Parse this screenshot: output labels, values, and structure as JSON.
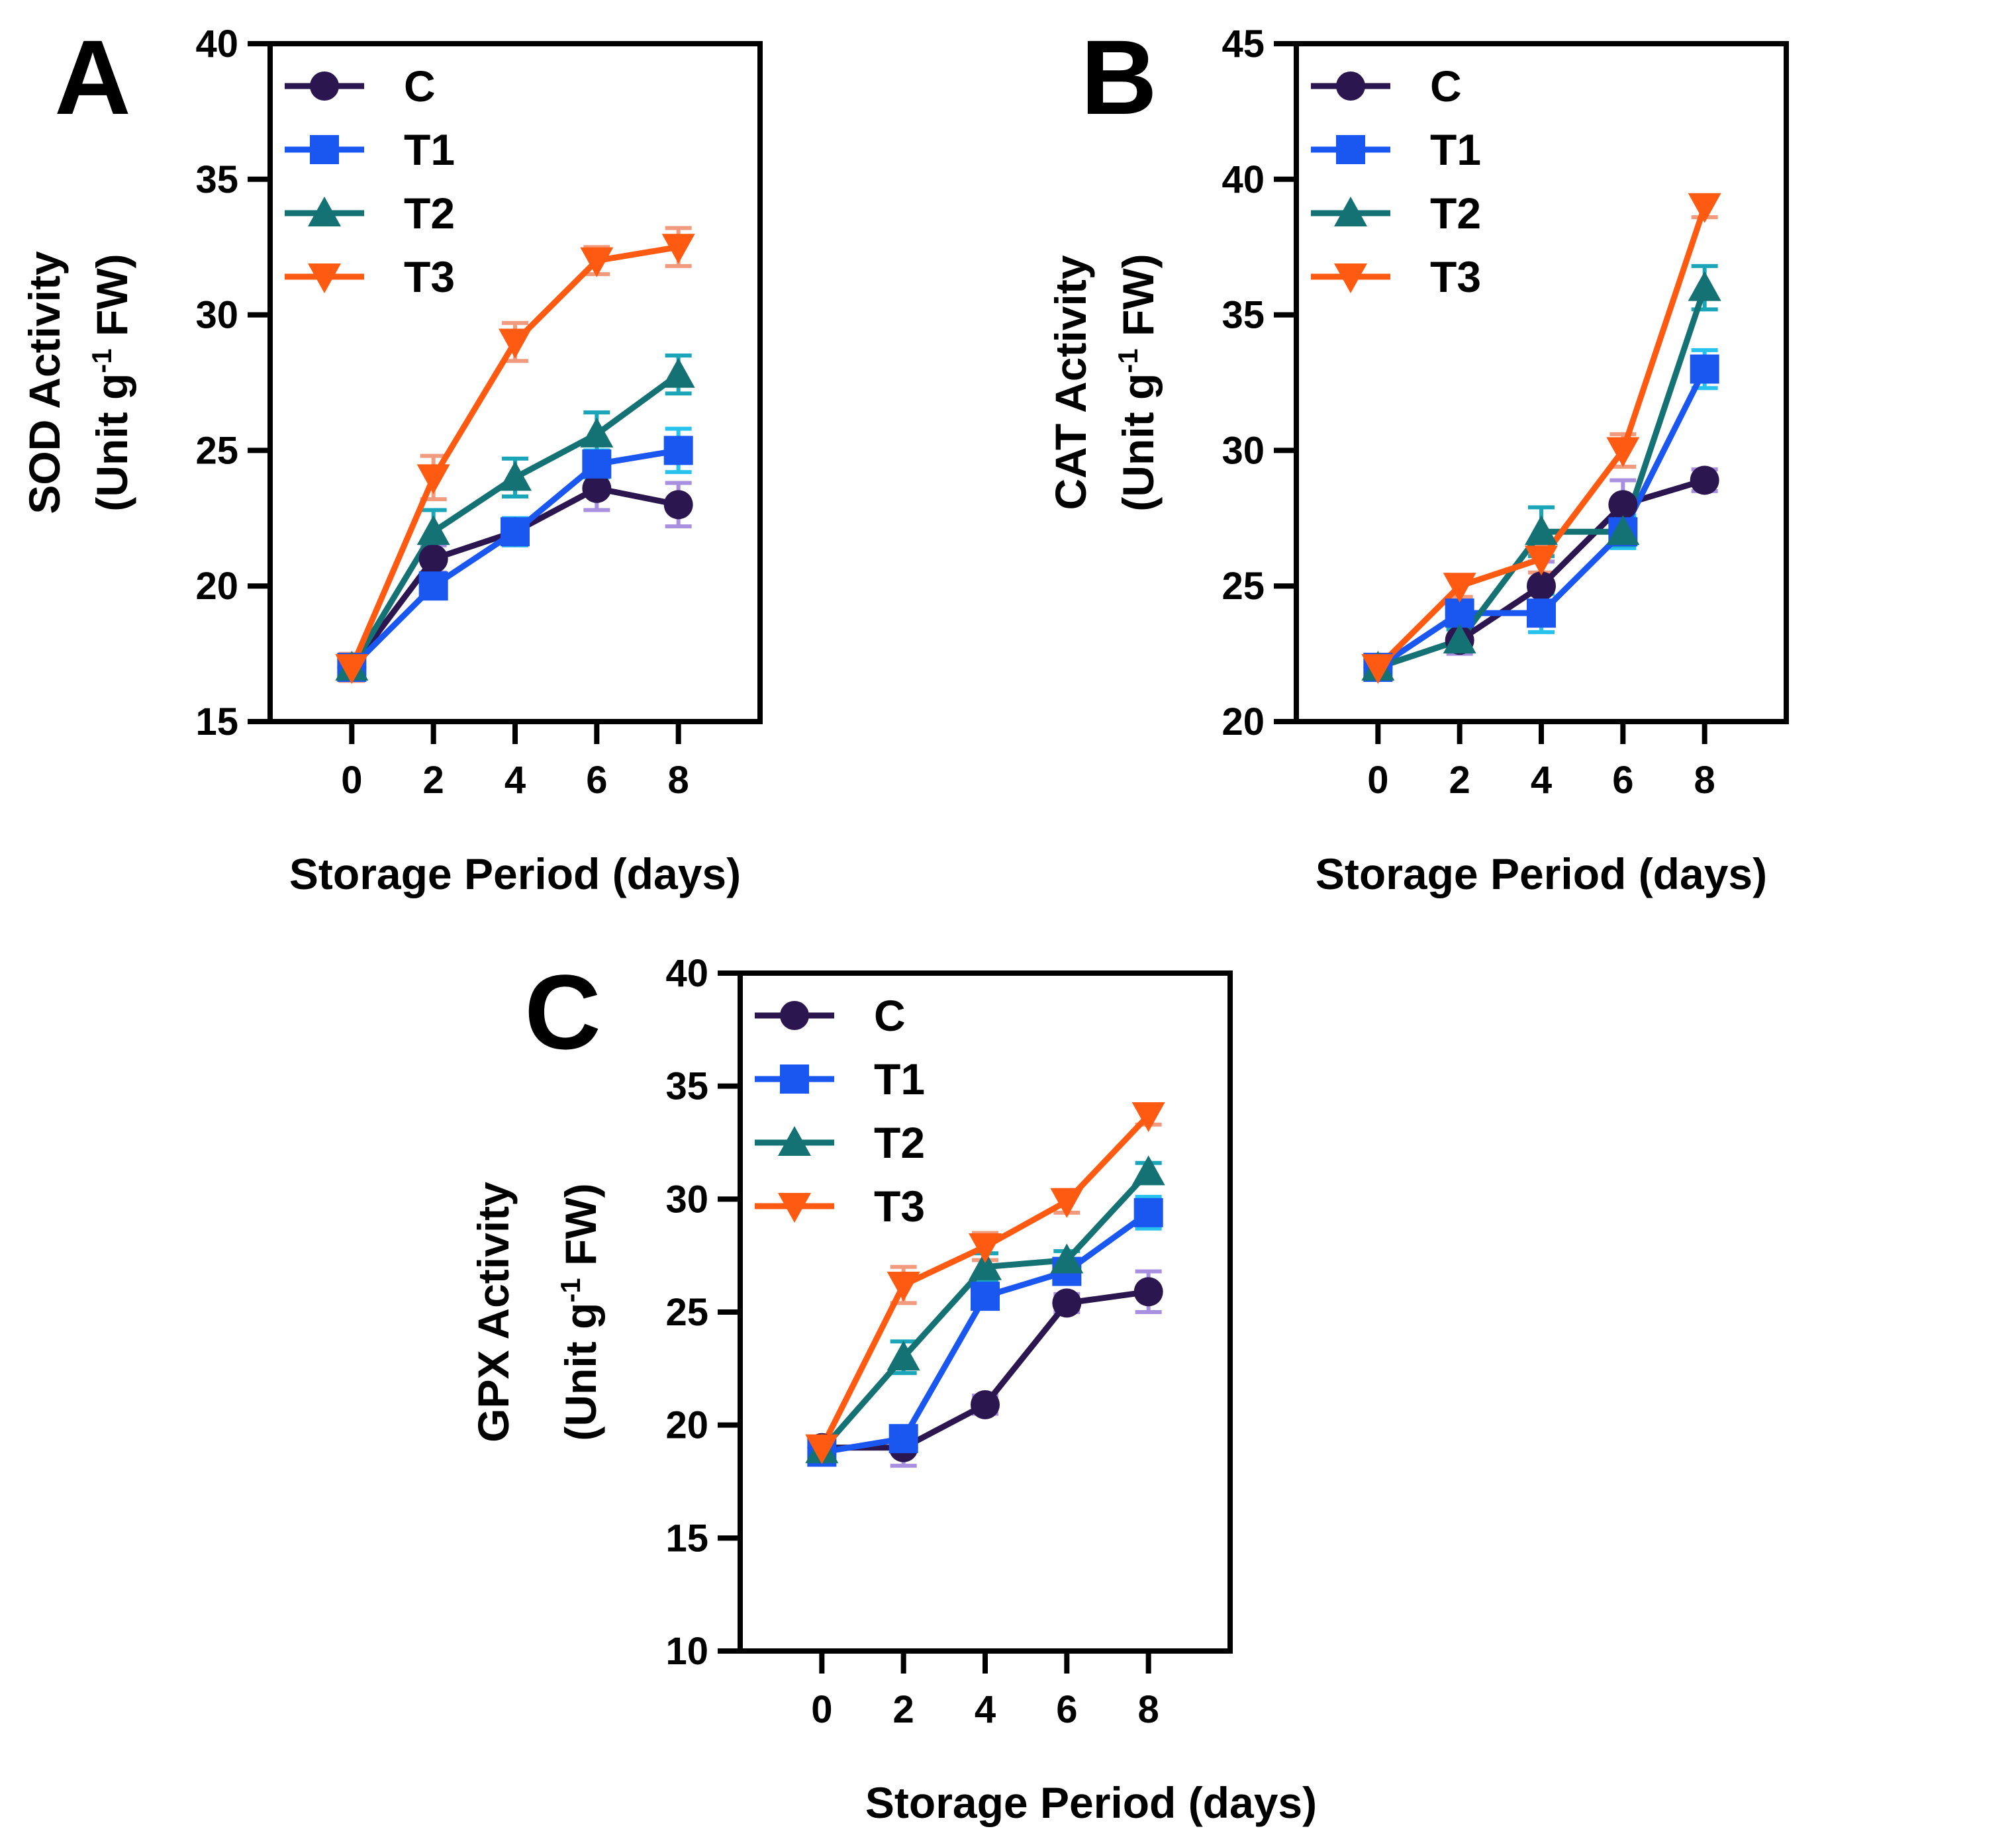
{
  "colors": {
    "C": "#2b1650",
    "T1": "#1a56f0",
    "T2": "#157274",
    "T3": "#ff5a12",
    "err_C": "#a98fe0",
    "err_T1": "#28c2ee",
    "err_T2": "#1aa6b8",
    "err_T3": "#f29a7e"
  },
  "chart_data": [
    {
      "panel": "A",
      "type": "line",
      "title": "",
      "xlabel": "Storage Period (days)",
      "ylabel_main": "SOD Activity",
      "ylabel_unit_pre": "(Unit g",
      "ylabel_unit_sup": "-1",
      "ylabel_unit_post": " FW)",
      "x": [
        0,
        2,
        4,
        6,
        8
      ],
      "x_tick_labels": [
        "0",
        "2",
        "4",
        "6",
        "8"
      ],
      "xlim": [
        -2,
        10
      ],
      "ylim": [
        15,
        40
      ],
      "y_ticks": [
        15,
        20,
        25,
        30,
        35,
        40
      ],
      "legend": "top-left",
      "series": [
        {
          "name": "C",
          "marker": "circle",
          "values": [
            17.0,
            21.0,
            22.0,
            23.6,
            23.0
          ],
          "errors": [
            0.4,
            0.5,
            0.5,
            0.8,
            0.8
          ]
        },
        {
          "name": "T1",
          "marker": "square",
          "values": [
            17.0,
            20.0,
            22.0,
            24.5,
            25.0
          ],
          "errors": [
            0.4,
            0.4,
            0.5,
            0.5,
            0.8
          ]
        },
        {
          "name": "T2",
          "marker": "triangle-up",
          "values": [
            17.0,
            22.0,
            24.0,
            25.6,
            27.8
          ],
          "errors": [
            0.4,
            0.8,
            0.7,
            0.8,
            0.7
          ]
        },
        {
          "name": "T3",
          "marker": "triangle-down",
          "values": [
            17.0,
            24.0,
            29.0,
            32.0,
            32.5
          ],
          "errors": [
            0.5,
            0.8,
            0.7,
            0.5,
            0.7
          ]
        }
      ]
    },
    {
      "panel": "B",
      "type": "line",
      "title": "",
      "xlabel": "Storage Period (days)",
      "ylabel_main": "CAT Activity",
      "ylabel_unit_pre": "(Unit g",
      "ylabel_unit_sup": "-1",
      "ylabel_unit_post": " FW)",
      "x": [
        0,
        2,
        4,
        6,
        8
      ],
      "x_tick_labels": [
        "0",
        "2",
        "4",
        "6",
        "8"
      ],
      "xlim": [
        -2,
        10
      ],
      "ylim": [
        20,
        45
      ],
      "y_ticks": [
        20,
        25,
        30,
        35,
        40,
        45
      ],
      "legend": "top-left",
      "series": [
        {
          "name": "C",
          "marker": "circle",
          "values": [
            22.0,
            23.0,
            25.0,
            28.0,
            28.9
          ],
          "errors": [
            0.4,
            0.5,
            0.9,
            0.9,
            0.4
          ]
        },
        {
          "name": "T1",
          "marker": "square",
          "values": [
            22.0,
            24.0,
            24.0,
            27.0,
            33.0
          ],
          "errors": [
            0.3,
            0.5,
            0.7,
            0.6,
            0.7
          ]
        },
        {
          "name": "T2",
          "marker": "triangle-up",
          "values": [
            22.0,
            23.0,
            27.0,
            27.0,
            36.0
          ],
          "errors": [
            0.3,
            0.4,
            0.9,
            0.5,
            0.8
          ]
        },
        {
          "name": "T3",
          "marker": "triangle-down",
          "values": [
            22.0,
            25.0,
            26.0,
            30.0,
            39.0
          ],
          "errors": [
            0.3,
            0.4,
            0.5,
            0.6,
            0.4
          ]
        }
      ]
    },
    {
      "panel": "C",
      "type": "line",
      "title": "",
      "xlabel": "Storage Period (days)",
      "ylabel_main": "GPX Activity",
      "ylabel_unit_pre": "(Unit g",
      "ylabel_unit_sup": "-1",
      "ylabel_unit_post": " FW)",
      "x": [
        0,
        2,
        4,
        6,
        8
      ],
      "x_tick_labels": [
        "0",
        "2",
        "4",
        "6",
        "8"
      ],
      "xlim": [
        -2,
        10
      ],
      "ylim": [
        10,
        40
      ],
      "y_ticks": [
        10,
        15,
        20,
        25,
        30,
        35,
        40
      ],
      "legend": "top-left",
      "series": [
        {
          "name": "C",
          "marker": "circle",
          "values": [
            19.0,
            19.0,
            20.9,
            25.4,
            25.9
          ],
          "errors": [
            0.3,
            0.8,
            0.4,
            0.4,
            0.9
          ]
        },
        {
          "name": "T1",
          "marker": "square",
          "values": [
            18.8,
            19.4,
            25.7,
            26.8,
            29.4
          ],
          "errors": [
            0.3,
            0.5,
            0.4,
            0.4,
            0.7
          ]
        },
        {
          "name": "T2",
          "marker": "triangle-up",
          "values": [
            18.9,
            23.0,
            27.0,
            27.3,
            31.2
          ],
          "errors": [
            0.3,
            0.7,
            0.6,
            0.4,
            0.4
          ]
        },
        {
          "name": "T3",
          "marker": "triangle-down",
          "values": [
            19.0,
            26.2,
            27.9,
            29.9,
            33.7
          ],
          "errors": [
            0.3,
            0.8,
            0.6,
            0.5,
            0.4
          ]
        }
      ]
    }
  ]
}
